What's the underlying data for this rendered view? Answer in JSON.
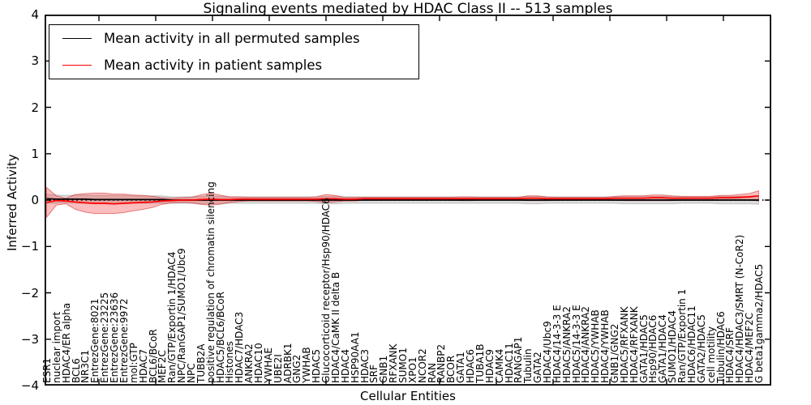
{
  "title": "Signaling events mediated by HDAC Class II -- 513 samples",
  "chart_data": {
    "type": "line",
    "title": "Signaling events mediated by HDAC Class II -- 513 samples",
    "xlabel": "Cellular Entities",
    "ylabel": "Inferred Activity",
    "ylim": [
      -4,
      4
    ],
    "ytick_values": [
      4,
      3,
      2,
      1,
      0,
      -1,
      -2,
      -3,
      -4
    ],
    "ytick_labels": [
      "4",
      "3",
      "2",
      "1",
      "0",
      "−1",
      "−2",
      "−3",
      "−4"
    ],
    "grid": false,
    "zero_line": {
      "value": 0,
      "style": "dotted",
      "color": "#000000"
    },
    "legend_position": "upper left",
    "categories": [
      "ESR1",
      "nuclear import",
      "HDAC4/ER alpha",
      "BCL6",
      "NR3C1",
      "EntrezGene:8021",
      "EntrezGene:23225",
      "EntrezGene:23636",
      "EntrezGene:9972",
      "mol:GTP",
      "HDAC7",
      "BCL6/BCoR",
      "MEF2C",
      "Ran/GTP/Exportin 1/HDAC4",
      "NPC/RanGAP1/SUMO1/Ubc9",
      "NPC",
      "TUBB2A",
      "positive regulation of chromatin silencing",
      "HDAC5/BCL6/BCoR",
      "Histones",
      "HDAC7/HDAC3",
      "ANKRA2",
      "HDAC10",
      "YWHAE",
      "UBE2I",
      "ADRBK1",
      "GNG2",
      "YWHAB",
      "HDAC5",
      "Glucocorticoid receptor/Hsp90/HDAC6",
      "HDAC4/CaMK II delta B",
      "HDAC4",
      "HSP90AA1",
      "HDAC3",
      "SRF",
      "GNB1",
      "RFXANK",
      "SUMO1",
      "XPO1",
      "NCOR2",
      "RAN",
      "RANBP2",
      "BCOR",
      "GATA1",
      "HDAC6",
      "TUBA1B",
      "HDAC9",
      "CAMK4",
      "HDAC11",
      "RANGAP1",
      "Tubulin",
      "GATA2",
      "HDAC4/Ubc9",
      "HDAC4/14-3-3 E",
      "HDAC5/ANKRA2",
      "HDAC5/14-3-3 E",
      "HDAC4/ANKRA2",
      "HDAC5/YWHAB",
      "HDAC4/YWHAB",
      "GNB1/GNG2",
      "HDAC5/RFXANK",
      "HDAC4/RFXANK",
      "GATA1/HDAC5",
      "Hsp90/HDAC6",
      "GATA1/HDAC4",
      "SUMO1/HDAC4",
      "Ran/GTP/Exportin 1",
      "HDAC6/HDAC11",
      "GATA2/HDAC5",
      "cell motility",
      "Tubulin/HDAC6",
      "HDAC4/SRF",
      "HDAC4/HDAC3/SMRT (N-CoR2)",
      "HDAC4/MEF2C",
      "G beta1gamma2/HDAC5"
    ],
    "series": [
      {
        "id": "permuted",
        "name": "Mean activity in all permuted samples",
        "color": "#000000",
        "band_color": "rgba(140,140,140,0.30)",
        "band_edge": "rgba(140,140,140,0.45)",
        "values": [
          0.03,
          0.02,
          0.02,
          0.02,
          0.02,
          0.01,
          0.01,
          0.01,
          0.01,
          0.01,
          0.01,
          0.01,
          0.01,
          0.0,
          0.0,
          0.0,
          0.0,
          0.0,
          0.0,
          0.0,
          0.0,
          0.0,
          0.0,
          0.0,
          0.0,
          0.0,
          0.0,
          0.0,
          0.0,
          0.0,
          0.0,
          0.0,
          0.0,
          0.0,
          0.0,
          0.0,
          0.0,
          0.0,
          0.0,
          0.0,
          0.0,
          0.0,
          0.0,
          0.0,
          0.0,
          0.0,
          0.0,
          0.0,
          0.0,
          0.0,
          0.0,
          0.0,
          0.0,
          0.0,
          0.0,
          0.0,
          0.0,
          0.0,
          0.0,
          0.0,
          0.0,
          0.0,
          0.0,
          0.0,
          0.0,
          0.0,
          0.0,
          0.0,
          0.0,
          0.0,
          0.0,
          0.0,
          0.0,
          0.0,
          0.0
        ],
        "band_halfwidth": [
          0.1,
          0.09,
          0.08,
          0.09,
          0.09,
          0.09,
          0.09,
          0.09,
          0.09,
          0.08,
          0.08,
          0.08,
          0.08,
          0.07,
          0.07,
          0.07,
          0.08,
          0.08,
          0.08,
          0.07,
          0.07,
          0.07,
          0.07,
          0.07,
          0.07,
          0.07,
          0.07,
          0.07,
          0.07,
          0.08,
          0.08,
          0.07,
          0.07,
          0.07,
          0.07,
          0.07,
          0.07,
          0.07,
          0.07,
          0.07,
          0.07,
          0.07,
          0.07,
          0.07,
          0.07,
          0.07,
          0.07,
          0.07,
          0.07,
          0.07,
          0.08,
          0.08,
          0.07,
          0.07,
          0.07,
          0.07,
          0.07,
          0.07,
          0.07,
          0.07,
          0.08,
          0.08,
          0.08,
          0.08,
          0.08,
          0.08,
          0.07,
          0.07,
          0.07,
          0.07,
          0.08,
          0.08,
          0.08,
          0.08,
          0.09
        ]
      },
      {
        "id": "patient",
        "name": "Mean activity in patient samples",
        "color": "#ff0000",
        "band_color": "rgba(243,56,56,0.33)",
        "band_edge": "rgba(205,25,25,0.50)",
        "values": [
          -0.05,
          -0.01,
          -0.02,
          -0.04,
          -0.06,
          -0.07,
          -0.07,
          -0.08,
          -0.07,
          -0.06,
          -0.05,
          -0.04,
          -0.02,
          -0.01,
          0.0,
          0.0,
          0.01,
          0.02,
          0.01,
          0.01,
          0.02,
          0.02,
          0.02,
          0.02,
          0.02,
          0.02,
          0.02,
          0.02,
          0.02,
          0.03,
          0.03,
          0.02,
          0.02,
          0.03,
          0.03,
          0.03,
          0.03,
          0.03,
          0.03,
          0.03,
          0.03,
          0.03,
          0.03,
          0.03,
          0.03,
          0.03,
          0.03,
          0.03,
          0.03,
          0.03,
          0.04,
          0.04,
          0.03,
          0.03,
          0.03,
          0.03,
          0.03,
          0.03,
          0.03,
          0.04,
          0.04,
          0.04,
          0.04,
          0.05,
          0.05,
          0.04,
          0.04,
          0.04,
          0.04,
          0.04,
          0.05,
          0.05,
          0.06,
          0.07,
          0.09
        ],
        "band_halfwidth": [
          0.32,
          0.1,
          0.06,
          0.16,
          0.2,
          0.22,
          0.22,
          0.21,
          0.2,
          0.17,
          0.15,
          0.12,
          0.07,
          0.05,
          0.05,
          0.06,
          0.1,
          0.13,
          0.1,
          0.06,
          0.05,
          0.04,
          0.04,
          0.04,
          0.04,
          0.04,
          0.04,
          0.04,
          0.05,
          0.09,
          0.07,
          0.04,
          0.04,
          0.03,
          0.03,
          0.03,
          0.03,
          0.03,
          0.03,
          0.03,
          0.03,
          0.03,
          0.03,
          0.04,
          0.04,
          0.03,
          0.03,
          0.03,
          0.03,
          0.03,
          0.05,
          0.05,
          0.04,
          0.03,
          0.03,
          0.03,
          0.03,
          0.03,
          0.03,
          0.04,
          0.05,
          0.05,
          0.05,
          0.06,
          0.06,
          0.05,
          0.04,
          0.04,
          0.04,
          0.04,
          0.05,
          0.05,
          0.06,
          0.07,
          0.11
        ]
      }
    ]
  }
}
